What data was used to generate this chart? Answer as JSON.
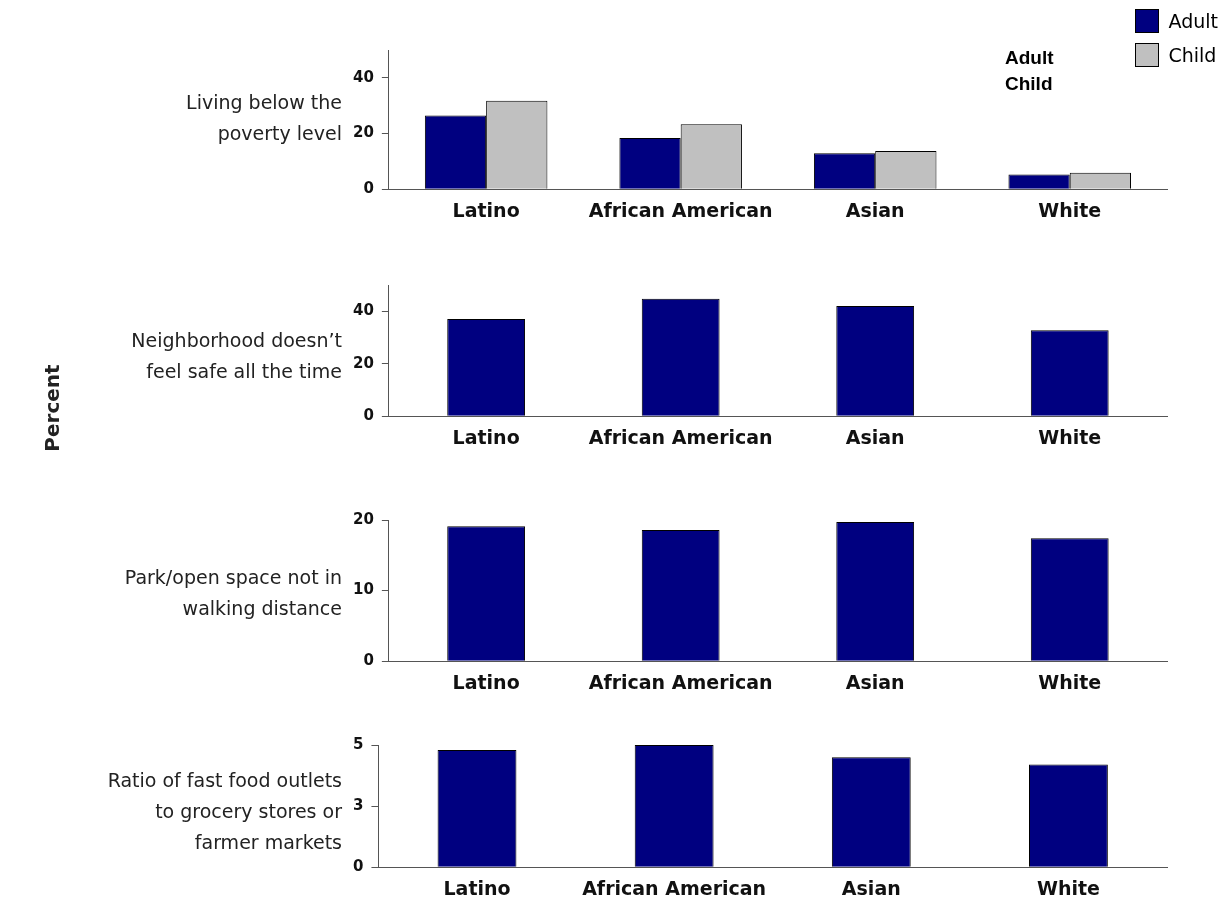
{
  "chart_data": [
    {
      "type": "bar",
      "title": "Living below the poverty level",
      "categories": [
        "Latino",
        "African American",
        "Asian",
        "White"
      ],
      "series": [
        {
          "name": "Adult",
          "color": "#000080",
          "values": [
            26.5,
            18.4,
            12.9,
            5.3
          ]
        },
        {
          "name": "Child",
          "color": "#c0c0c0",
          "values": [
            31.8,
            23.3,
            13.7,
            5.9
          ]
        }
      ],
      "ylim": [
        0,
        50
      ],
      "yticks": [
        0,
        20,
        40
      ],
      "grid": false,
      "legend": "top right",
      "annotations": [
        "Adult",
        "Child"
      ]
    },
    {
      "type": "bar",
      "title": "Neighborhood doesn’t feel safe all the time",
      "ylabel": "Percent",
      "categories": [
        "Latino",
        "African American",
        "Asian",
        "White"
      ],
      "series": [
        {
          "color": "#000080",
          "values": [
            37,
            44.8,
            42,
            32.8
          ]
        }
      ],
      "ylim": [
        0,
        50
      ],
      "yticks": [
        0,
        20,
        40
      ],
      "grid": false,
      "legend": false
    },
    {
      "type": "bar",
      "title": "Park/open space not in walking distance",
      "categories": [
        "Latino",
        "African American",
        "Asian",
        "White"
      ],
      "series": [
        {
          "color": "#000080",
          "values": [
            19.1,
            18.6,
            19.7,
            17.4
          ]
        }
      ],
      "ylim": [
        0,
        20
      ],
      "yticks": [
        0,
        10,
        20
      ],
      "grid": false,
      "legend": false
    },
    {
      "type": "bar",
      "title": "Ratio of fast food outlets to grocery stores or farmer markets",
      "categories": [
        "Latino",
        "African American",
        "Asian",
        "White"
      ],
      "series": [
        {
          "color": "#000080",
          "values": [
            4.8,
            5.0,
            4.5,
            4.2
          ]
        }
      ],
      "ylim": [
        0,
        5
      ],
      "yticks": [
        0,
        {
          "value": 2.5,
          "label": "3"
        },
        5
      ],
      "grid": false,
      "legend": false
    }
  ]
}
